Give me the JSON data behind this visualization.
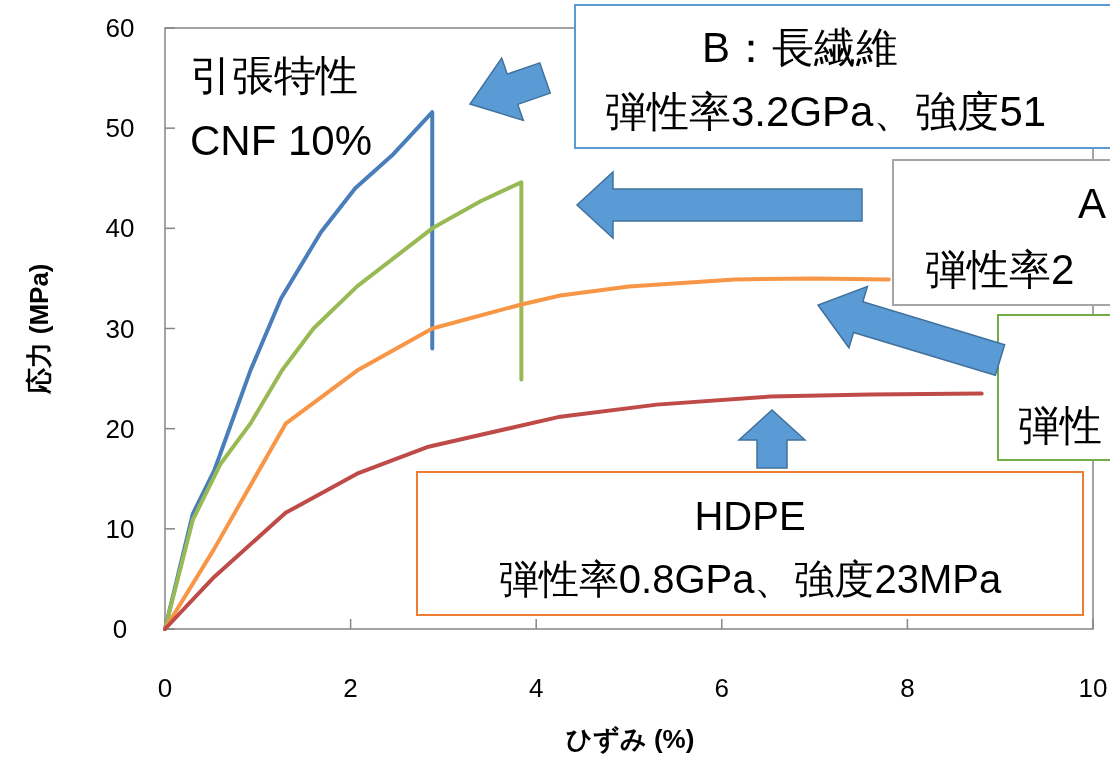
{
  "chart_data": {
    "type": "line",
    "xlabel": "ひずみ (%)",
    "ylabel": "応力 (MPa)",
    "xlim": [
      0,
      10
    ],
    "xticks": [
      0,
      2,
      4,
      6,
      8,
      10
    ],
    "ylim": [
      0,
      60
    ],
    "yticks": [
      0,
      10,
      20,
      30,
      40,
      50,
      60
    ],
    "grid": false,
    "marker": "none",
    "line_style": "solid",
    "series": [
      {
        "color": "#4a7ebb",
        "x": [
          0,
          0.3,
          0.53,
          0.92,
          1.25,
          1.68,
          2.05,
          2.46,
          2.88,
          2.88
        ],
        "values": [
          0,
          11.5,
          15.8,
          25.8,
          33,
          39.6,
          44,
          47.4,
          51.6,
          28
        ]
      },
      {
        "color": "#98b954",
        "x": [
          0,
          0.3,
          0.6,
          0.92,
          1.26,
          1.6,
          2.07,
          2.88,
          3.4,
          3.84,
          3.84
        ],
        "values": [
          0,
          10.9,
          16.5,
          20.5,
          25.8,
          30,
          34.2,
          40,
          42.7,
          44.6,
          24.9
        ]
      },
      {
        "color": "#f79646",
        "x": [
          0,
          0.53,
          1.3,
          2.07,
          2.88,
          3.84,
          4.26,
          5,
          6.14,
          7,
          7.8
        ],
        "values": [
          0,
          8,
          20.5,
          25.8,
          30,
          32.4,
          33.3,
          34.2,
          34.9,
          35,
          34.9
        ]
      },
      {
        "color": "#be4b48",
        "x": [
          0,
          0.53,
          1.3,
          2.07,
          2.84,
          4.26,
          5.3,
          6.52,
          7.6,
          8.8
        ],
        "values": [
          0,
          5.2,
          11.6,
          15.5,
          18.2,
          21.2,
          22.4,
          23.2,
          23.4,
          23.5
        ]
      }
    ],
    "annotations": [
      "引張特性",
      "CNF 10%",
      "B：長繊維",
      "弾性率3.2GPa、強度51",
      "A",
      "弾性率2",
      "弾性",
      "HDPE",
      "弾性率0.8GPa、強度23MPa"
    ]
  }
}
